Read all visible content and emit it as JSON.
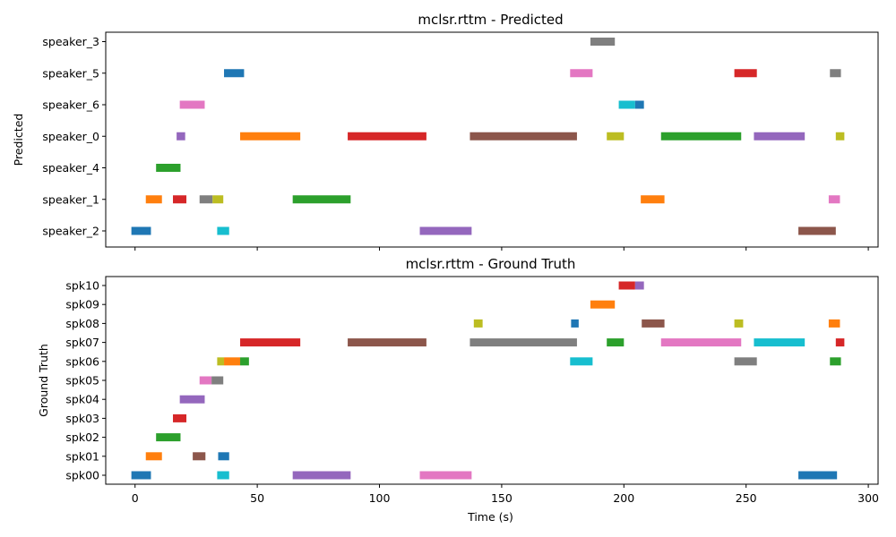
{
  "chart_data": [
    {
      "type": "timeline",
      "title": "mclsr.rttm - Predicted",
      "xlabel": "",
      "ylabel": "Predicted",
      "xlim": [
        -12,
        304
      ],
      "xticks": [
        0,
        50,
        100,
        150,
        200,
        250,
        300
      ],
      "show_xtick_labels": false,
      "grid": false,
      "rows": [
        "speaker_3",
        "speaker_5",
        "speaker_6",
        "speaker_0",
        "speaker_4",
        "speaker_1",
        "speaker_2"
      ],
      "segments": [
        {
          "row": "speaker_3",
          "start": 186.3,
          "end": 196.3,
          "color": "#7f7f7f"
        },
        {
          "row": "speaker_5",
          "start": 36.4,
          "end": 44.6,
          "color": "#1f77b4"
        },
        {
          "row": "speaker_5",
          "start": 178.0,
          "end": 187.2,
          "color": "#e377c2"
        },
        {
          "row": "speaker_5",
          "start": 245.2,
          "end": 254.4,
          "color": "#d62728"
        },
        {
          "row": "speaker_5",
          "start": 284.3,
          "end": 288.8,
          "color": "#7f7f7f"
        },
        {
          "row": "speaker_6",
          "start": 18.3,
          "end": 28.5,
          "color": "#e377c2"
        },
        {
          "row": "speaker_6",
          "start": 197.9,
          "end": 204.6,
          "color": "#17becf"
        },
        {
          "row": "speaker_6",
          "start": 204.6,
          "end": 208.2,
          "color": "#1f77b4"
        },
        {
          "row": "speaker_0",
          "start": 17.0,
          "end": 20.5,
          "color": "#9467bd"
        },
        {
          "row": "speaker_0",
          "start": 43.0,
          "end": 67.6,
          "color": "#ff7f0e"
        },
        {
          "row": "speaker_0",
          "start": 87.0,
          "end": 119.2,
          "color": "#d62728"
        },
        {
          "row": "speaker_0",
          "start": 137.0,
          "end": 180.8,
          "color": "#8c564b"
        },
        {
          "row": "speaker_0",
          "start": 193.0,
          "end": 200.0,
          "color": "#bcbd22"
        },
        {
          "row": "speaker_0",
          "start": 215.2,
          "end": 248.0,
          "color": "#2ca02c"
        },
        {
          "row": "speaker_0",
          "start": 253.2,
          "end": 274.0,
          "color": "#9467bd"
        },
        {
          "row": "speaker_0",
          "start": 286.7,
          "end": 290.2,
          "color": "#bcbd22"
        },
        {
          "row": "speaker_4",
          "start": 8.6,
          "end": 18.6,
          "color": "#2ca02c"
        },
        {
          "row": "speaker_1",
          "start": 4.4,
          "end": 11.0,
          "color": "#ff7f0e"
        },
        {
          "row": "speaker_1",
          "start": 15.5,
          "end": 21.0,
          "color": "#d62728"
        },
        {
          "row": "speaker_1",
          "start": 26.4,
          "end": 31.7,
          "color": "#7f7f7f"
        },
        {
          "row": "speaker_1",
          "start": 31.7,
          "end": 36.1,
          "color": "#bcbd22"
        },
        {
          "row": "speaker_1",
          "start": 64.5,
          "end": 88.2,
          "color": "#2ca02c"
        },
        {
          "row": "speaker_1",
          "start": 206.9,
          "end": 216.6,
          "color": "#ff7f0e"
        },
        {
          "row": "speaker_1",
          "start": 283.8,
          "end": 288.4,
          "color": "#e377c2"
        },
        {
          "row": "speaker_2",
          "start": -1.5,
          "end": 6.5,
          "color": "#1f77b4"
        },
        {
          "row": "speaker_2",
          "start": 33.6,
          "end": 38.5,
          "color": "#17becf"
        },
        {
          "row": "speaker_2",
          "start": 116.5,
          "end": 137.7,
          "color": "#9467bd"
        },
        {
          "row": "speaker_2",
          "start": 271.4,
          "end": 286.7,
          "color": "#8c564b"
        }
      ]
    },
    {
      "type": "timeline",
      "title": "mclsr.rttm - Ground Truth",
      "xlabel": "Time (s)",
      "ylabel": "Ground Truth",
      "xlim": [
        -12,
        304
      ],
      "xticks": [
        0,
        50,
        100,
        150,
        200,
        250,
        300
      ],
      "show_xtick_labels": true,
      "grid": false,
      "rows": [
        "spk10",
        "spk09",
        "spk08",
        "spk07",
        "spk06",
        "spk05",
        "spk04",
        "spk03",
        "spk02",
        "spk01",
        "spk00"
      ],
      "segments": [
        {
          "row": "spk10",
          "start": 197.9,
          "end": 204.6,
          "color": "#d62728"
        },
        {
          "row": "spk10",
          "start": 204.6,
          "end": 208.2,
          "color": "#9467bd"
        },
        {
          "row": "spk09",
          "start": 186.3,
          "end": 196.3,
          "color": "#ff7f0e"
        },
        {
          "row": "spk08",
          "start": 138.6,
          "end": 142.2,
          "color": "#bcbd22"
        },
        {
          "row": "spk08",
          "start": 178.4,
          "end": 181.5,
          "color": "#1f77b4"
        },
        {
          "row": "spk08",
          "start": 207.3,
          "end": 216.6,
          "color": "#8c564b"
        },
        {
          "row": "spk08",
          "start": 245.2,
          "end": 248.8,
          "color": "#bcbd22"
        },
        {
          "row": "spk08",
          "start": 283.8,
          "end": 288.4,
          "color": "#ff7f0e"
        },
        {
          "row": "spk07",
          "start": 43.0,
          "end": 67.6,
          "color": "#d62728"
        },
        {
          "row": "spk07",
          "start": 87.0,
          "end": 119.2,
          "color": "#8c564b"
        },
        {
          "row": "spk07",
          "start": 137.0,
          "end": 180.8,
          "color": "#7f7f7f"
        },
        {
          "row": "spk07",
          "start": 193.0,
          "end": 200.0,
          "color": "#2ca02c"
        },
        {
          "row": "spk07",
          "start": 215.2,
          "end": 248.0,
          "color": "#e377c2"
        },
        {
          "row": "spk07",
          "start": 253.2,
          "end": 274.0,
          "color": "#17becf"
        },
        {
          "row": "spk07",
          "start": 286.7,
          "end": 290.2,
          "color": "#d62728"
        },
        {
          "row": "spk06",
          "start": 33.6,
          "end": 36.4,
          "color": "#bcbd22"
        },
        {
          "row": "spk06",
          "start": 36.4,
          "end": 43.0,
          "color": "#ff7f0e"
        },
        {
          "row": "spk06",
          "start": 43.0,
          "end": 46.6,
          "color": "#2ca02c"
        },
        {
          "row": "spk06",
          "start": 178.0,
          "end": 187.2,
          "color": "#17becf"
        },
        {
          "row": "spk06",
          "start": 245.2,
          "end": 254.4,
          "color": "#7f7f7f"
        },
        {
          "row": "spk06",
          "start": 284.3,
          "end": 288.8,
          "color": "#2ca02c"
        },
        {
          "row": "spk05",
          "start": 26.4,
          "end": 31.3,
          "color": "#e377c2"
        },
        {
          "row": "spk05",
          "start": 31.3,
          "end": 36.1,
          "color": "#7f7f7f"
        },
        {
          "row": "spk04",
          "start": 18.3,
          "end": 28.5,
          "color": "#9467bd"
        },
        {
          "row": "spk03",
          "start": 15.5,
          "end": 21.0,
          "color": "#d62728"
        },
        {
          "row": "spk02",
          "start": 8.6,
          "end": 18.6,
          "color": "#2ca02c"
        },
        {
          "row": "spk01",
          "start": 4.4,
          "end": 11.0,
          "color": "#ff7f0e"
        },
        {
          "row": "spk01",
          "start": 23.6,
          "end": 28.8,
          "color": "#8c564b"
        },
        {
          "row": "spk01",
          "start": 34.0,
          "end": 38.5,
          "color": "#1f77b4"
        },
        {
          "row": "spk00",
          "start": -1.5,
          "end": 6.5,
          "color": "#1f77b4"
        },
        {
          "row": "spk00",
          "start": 33.6,
          "end": 38.5,
          "color": "#17becf"
        },
        {
          "row": "spk00",
          "start": 64.5,
          "end": 88.2,
          "color": "#9467bd"
        },
        {
          "row": "spk00",
          "start": 116.5,
          "end": 137.7,
          "color": "#e377c2"
        },
        {
          "row": "spk00",
          "start": 271.4,
          "end": 287.2,
          "color": "#1f77b4"
        }
      ]
    }
  ]
}
